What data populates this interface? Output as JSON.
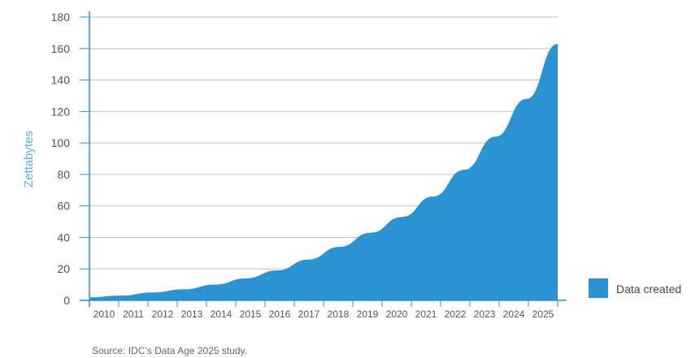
{
  "chart_data": {
    "type": "area",
    "title": "",
    "xlabel": "",
    "ylabel": "Zettabytes",
    "x": [
      "2010",
      "2011",
      "2012",
      "2013",
      "2014",
      "2015",
      "2016",
      "2017",
      "2018",
      "2019",
      "2020",
      "2021",
      "2022",
      "2023",
      "2024",
      "2025"
    ],
    "series": [
      {
        "name": "Data created",
        "values": [
          2,
          3,
          5,
          7,
          10,
          14,
          19,
          26,
          34,
          43,
          53,
          66,
          83,
          104,
          128,
          163
        ]
      }
    ],
    "ylim": [
      0,
      180
    ],
    "yticks": [
      "0",
      "20",
      "40",
      "60",
      "80",
      "100",
      "120",
      "140",
      "160",
      "180"
    ],
    "grid": "horizontal",
    "legend": "right",
    "source_note": "Source: IDC’s Data Age 2025 study."
  },
  "colors": {
    "area": "#2b93d1",
    "ylabel": "#5ab0e0",
    "grid": "#bfbfbf",
    "axis": "#2b93d1"
  }
}
